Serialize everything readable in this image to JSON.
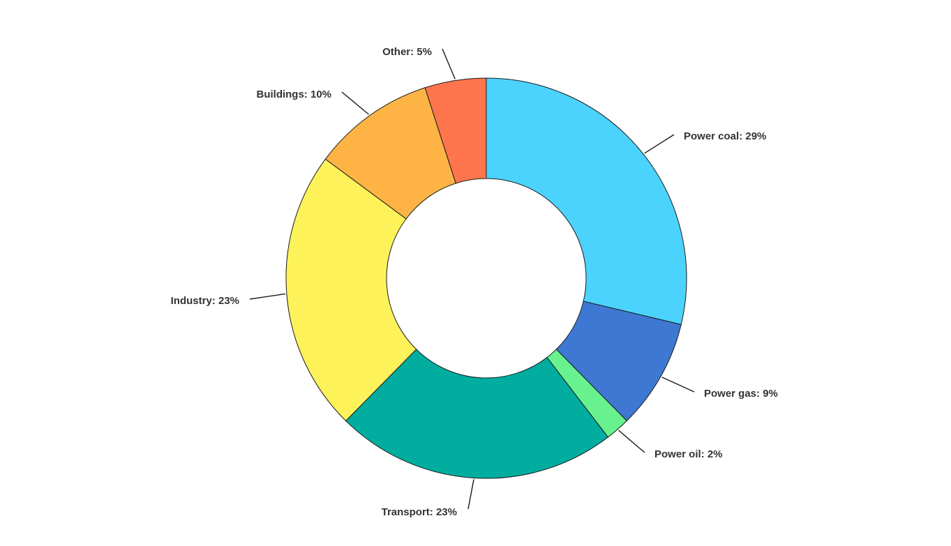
{
  "chart_data": {
    "type": "pie",
    "variant": "donut",
    "title": "",
    "legend": "none",
    "slices": [
      {
        "label": "Power coal",
        "value": 29,
        "display": "Power coal: 29%",
        "color": "#4bd3fe"
      },
      {
        "label": "Power gas",
        "value": 9,
        "display": "Power gas: 9%",
        "color": "#3e78d3"
      },
      {
        "label": "Power oil",
        "value": 2,
        "display": "Power oil: 2%",
        "color": "#68f28f"
      },
      {
        "label": "Transport",
        "value": 23,
        "display": "Transport: 23%",
        "color": "#00ad9f"
      },
      {
        "label": "Industry",
        "value": 23,
        "display": "Industry: 23%",
        "color": "#fef25a"
      },
      {
        "label": "Buildings",
        "value": 10,
        "display": "Buildings: 10%",
        "color": "#feb444"
      },
      {
        "label": "Other",
        "value": 5,
        "display": "Other: 5%",
        "color": "#fe754d"
      }
    ]
  }
}
